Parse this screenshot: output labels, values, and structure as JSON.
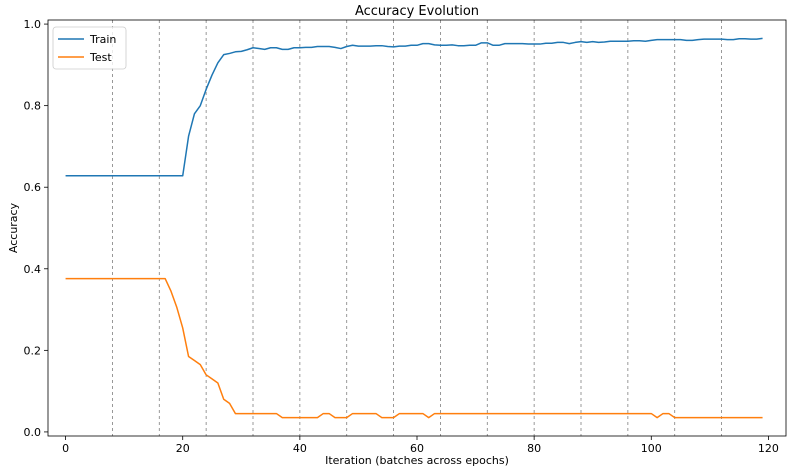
{
  "chart_data": {
    "type": "line",
    "title": "Accuracy Evolution",
    "xlabel": "Iteration (batches across epochs)",
    "ylabel": "Accuracy",
    "xlim": [
      -3,
      123
    ],
    "ylim": [
      -0.01,
      1.01
    ],
    "xticks": [
      0,
      20,
      40,
      60,
      80,
      100,
      120
    ],
    "yticks": [
      0.0,
      0.2,
      0.4,
      0.6,
      0.8,
      1.0
    ],
    "xtick_labels": [
      "0",
      "20",
      "40",
      "60",
      "80",
      "100",
      "120"
    ],
    "ytick_labels": [
      "0.0",
      "0.2",
      "0.4",
      "0.6",
      "0.8",
      "1.0"
    ],
    "epoch_boundaries": [
      8,
      16,
      24,
      32,
      40,
      48,
      56,
      64,
      72,
      80,
      88,
      96,
      104,
      112
    ],
    "legend_position": "top-left",
    "series": [
      {
        "name": "Train",
        "color": "#1f77b4",
        "x": [
          0,
          1,
          2,
          3,
          4,
          5,
          6,
          7,
          8,
          9,
          10,
          11,
          12,
          13,
          14,
          15,
          16,
          17,
          18,
          19,
          20,
          21,
          22,
          23,
          24,
          25,
          26,
          27,
          28,
          29,
          30,
          31,
          32,
          33,
          34,
          35,
          36,
          37,
          38,
          39,
          40,
          41,
          42,
          43,
          44,
          45,
          46,
          47,
          48,
          49,
          50,
          51,
          52,
          53,
          54,
          55,
          56,
          57,
          58,
          59,
          60,
          61,
          62,
          63,
          64,
          65,
          66,
          67,
          68,
          69,
          70,
          71,
          72,
          73,
          74,
          75,
          76,
          77,
          78,
          79,
          80,
          81,
          82,
          83,
          84,
          85,
          86,
          87,
          88,
          89,
          90,
          91,
          92,
          93,
          94,
          95,
          96,
          97,
          98,
          99,
          100,
          101,
          102,
          103,
          104,
          105,
          106,
          107,
          108,
          109,
          110,
          111,
          112,
          113,
          114,
          115,
          116,
          117,
          118,
          119
        ],
        "values": [
          0.628,
          0.628,
          0.628,
          0.628,
          0.628,
          0.628,
          0.628,
          0.628,
          0.628,
          0.628,
          0.628,
          0.628,
          0.628,
          0.628,
          0.628,
          0.628,
          0.628,
          0.628,
          0.628,
          0.628,
          0.628,
          0.725,
          0.78,
          0.8,
          0.84,
          0.875,
          0.905,
          0.925,
          0.928,
          0.932,
          0.933,
          0.937,
          0.942,
          0.94,
          0.938,
          0.942,
          0.942,
          0.938,
          0.938,
          0.942,
          0.942,
          0.943,
          0.943,
          0.945,
          0.945,
          0.945,
          0.943,
          0.94,
          0.945,
          0.948,
          0.946,
          0.946,
          0.946,
          0.947,
          0.947,
          0.945,
          0.944,
          0.946,
          0.946,
          0.948,
          0.948,
          0.952,
          0.952,
          0.949,
          0.948,
          0.948,
          0.949,
          0.947,
          0.947,
          0.948,
          0.948,
          0.954,
          0.954,
          0.948,
          0.948,
          0.952,
          0.952,
          0.952,
          0.952,
          0.951,
          0.951,
          0.951,
          0.953,
          0.953,
          0.955,
          0.955,
          0.952,
          0.955,
          0.957,
          0.955,
          0.957,
          0.955,
          0.956,
          0.958,
          0.958,
          0.958,
          0.958,
          0.959,
          0.959,
          0.958,
          0.96,
          0.962,
          0.962,
          0.962,
          0.962,
          0.962,
          0.96,
          0.96,
          0.962,
          0.963,
          0.963,
          0.963,
          0.963,
          0.962,
          0.962,
          0.964,
          0.964,
          0.963,
          0.963,
          0.965
        ]
      },
      {
        "name": "Test",
        "color": "#ff7f0e",
        "x": [
          0,
          1,
          2,
          3,
          4,
          5,
          6,
          7,
          8,
          9,
          10,
          11,
          12,
          13,
          14,
          15,
          16,
          17,
          18,
          19,
          20,
          21,
          22,
          23,
          24,
          25,
          26,
          27,
          28,
          29,
          30,
          31,
          32,
          33,
          34,
          35,
          36,
          37,
          38,
          39,
          40,
          41,
          42,
          43,
          44,
          45,
          46,
          47,
          48,
          49,
          50,
          51,
          52,
          53,
          54,
          55,
          56,
          57,
          58,
          59,
          60,
          61,
          62,
          63,
          64,
          65,
          66,
          67,
          68,
          69,
          70,
          71,
          72,
          73,
          74,
          75,
          76,
          77,
          78,
          79,
          80,
          81,
          82,
          83,
          84,
          85,
          86,
          87,
          88,
          89,
          90,
          91,
          92,
          93,
          94,
          95,
          96,
          97,
          98,
          99,
          100,
          101,
          102,
          103,
          104,
          105,
          106,
          107,
          108,
          109,
          110,
          111,
          112,
          113,
          114,
          115,
          116,
          117,
          118,
          119
        ],
        "values": [
          0.376,
          0.376,
          0.376,
          0.376,
          0.376,
          0.376,
          0.376,
          0.376,
          0.376,
          0.376,
          0.376,
          0.376,
          0.376,
          0.376,
          0.376,
          0.376,
          0.376,
          0.376,
          0.345,
          0.305,
          0.255,
          0.185,
          0.175,
          0.165,
          0.14,
          0.13,
          0.12,
          0.08,
          0.07,
          0.045,
          0.045,
          0.045,
          0.045,
          0.045,
          0.045,
          0.045,
          0.045,
          0.035,
          0.035,
          0.035,
          0.035,
          0.035,
          0.035,
          0.035,
          0.045,
          0.045,
          0.035,
          0.035,
          0.035,
          0.045,
          0.045,
          0.045,
          0.045,
          0.045,
          0.035,
          0.035,
          0.035,
          0.045,
          0.045,
          0.045,
          0.045,
          0.045,
          0.035,
          0.045,
          0.045,
          0.045,
          0.045,
          0.045,
          0.045,
          0.045,
          0.045,
          0.045,
          0.045,
          0.045,
          0.045,
          0.045,
          0.045,
          0.045,
          0.045,
          0.045,
          0.045,
          0.045,
          0.045,
          0.045,
          0.045,
          0.045,
          0.045,
          0.045,
          0.045,
          0.045,
          0.045,
          0.045,
          0.045,
          0.045,
          0.045,
          0.045,
          0.045,
          0.045,
          0.045,
          0.045,
          0.045,
          0.035,
          0.045,
          0.045,
          0.035,
          0.035,
          0.035,
          0.035,
          0.035,
          0.035,
          0.035,
          0.035,
          0.035,
          0.035,
          0.035,
          0.035,
          0.035,
          0.035,
          0.035,
          0.035
        ]
      }
    ]
  }
}
